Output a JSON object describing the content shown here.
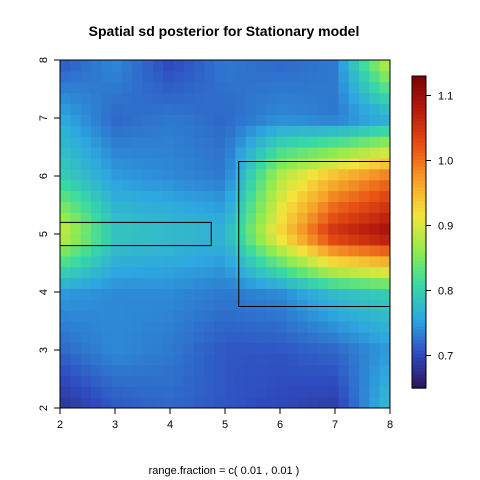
{
  "chart_data": {
    "type": "heatmap",
    "title": "Spatial sd posterior for Stationary model",
    "xlabel": "",
    "ylabel": "",
    "footer": "range.fraction = c( 0.01 ,  0.01 )",
    "xlim": [
      2,
      8
    ],
    "ylim": [
      2,
      8
    ],
    "x_ticks": [
      2,
      3,
      4,
      5,
      6,
      7,
      8
    ],
    "y_ticks": [
      2,
      3,
      4,
      5,
      6,
      7,
      8
    ],
    "colorbar": {
      "range": [
        0.65,
        1.13
      ],
      "ticks": [
        0.7,
        0.8,
        0.9,
        1.0,
        1.1
      ],
      "tick_labels": [
        "0.7",
        "0.8",
        "0.9",
        "1.0",
        "1.1"
      ]
    },
    "z_grid": {
      "x": [
        2,
        3,
        4,
        5,
        6,
        7,
        8
      ],
      "y": [
        2,
        3,
        4,
        5,
        6,
        7,
        8
      ],
      "rows": [
        [
          0.68,
          0.71,
          0.72,
          0.71,
          0.7,
          0.69,
          0.78
        ],
        [
          0.72,
          0.74,
          0.73,
          0.71,
          0.71,
          0.72,
          0.75
        ],
        [
          0.75,
          0.74,
          0.74,
          0.73,
          0.74,
          0.78,
          0.8
        ],
        [
          0.9,
          0.79,
          0.78,
          0.77,
          0.93,
          1.06,
          1.1
        ],
        [
          0.8,
          0.75,
          0.74,
          0.73,
          0.88,
          0.95,
          1.0
        ],
        [
          0.76,
          0.72,
          0.73,
          0.72,
          0.74,
          0.73,
          0.76
        ],
        [
          0.71,
          0.74,
          0.7,
          0.73,
          0.72,
          0.73,
          0.9
        ]
      ]
    },
    "rectangles": [
      {
        "x0": 2.0,
        "x1": 4.75,
        "y0": 4.8,
        "y1": 5.2
      },
      {
        "x0": 5.25,
        "x1": 8.0,
        "y0": 3.75,
        "y1": 6.25
      }
    ]
  },
  "colors": {
    "background": "#ffffff",
    "axis": "#000000",
    "rectangle": "#000000",
    "colormap": [
      "#2a1456",
      "#2f4bbf",
      "#2ea7e0",
      "#39d9a4",
      "#94ec4c",
      "#f4e43c",
      "#f6a12a",
      "#e75014",
      "#b81b0c",
      "#7a0403"
    ]
  }
}
